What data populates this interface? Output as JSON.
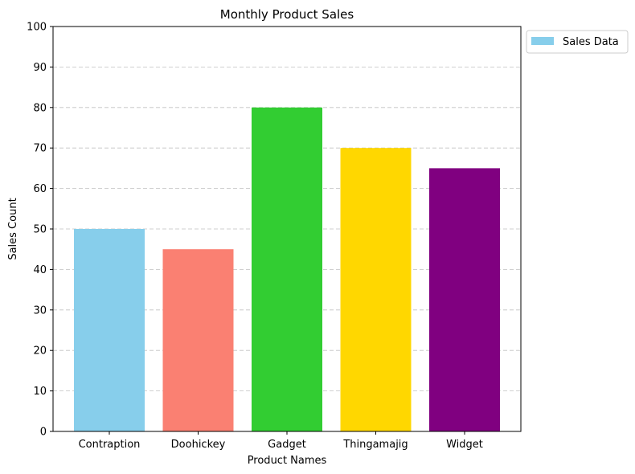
{
  "chart_data": {
    "type": "bar",
    "title": "Monthly Product Sales",
    "xlabel": "Product Names",
    "ylabel": "Sales Count",
    "categories": [
      "Contraption",
      "Doohickey",
      "Gadget",
      "Thingamajig",
      "Widget"
    ],
    "values": [
      50,
      45,
      80,
      70,
      65
    ],
    "colors": [
      "#87ceeb",
      "#fa8072",
      "#32cd32",
      "#ffd700",
      "#800080"
    ],
    "ylim": [
      0,
      100
    ],
    "yticks": [
      0,
      10,
      20,
      30,
      40,
      50,
      60,
      70,
      80,
      90,
      100
    ],
    "grid": "y-dashed",
    "legend": {
      "placement": "outside-top-right",
      "entries": [
        {
          "label": "Sales Data",
          "color": "#87ceeb"
        }
      ]
    }
  }
}
